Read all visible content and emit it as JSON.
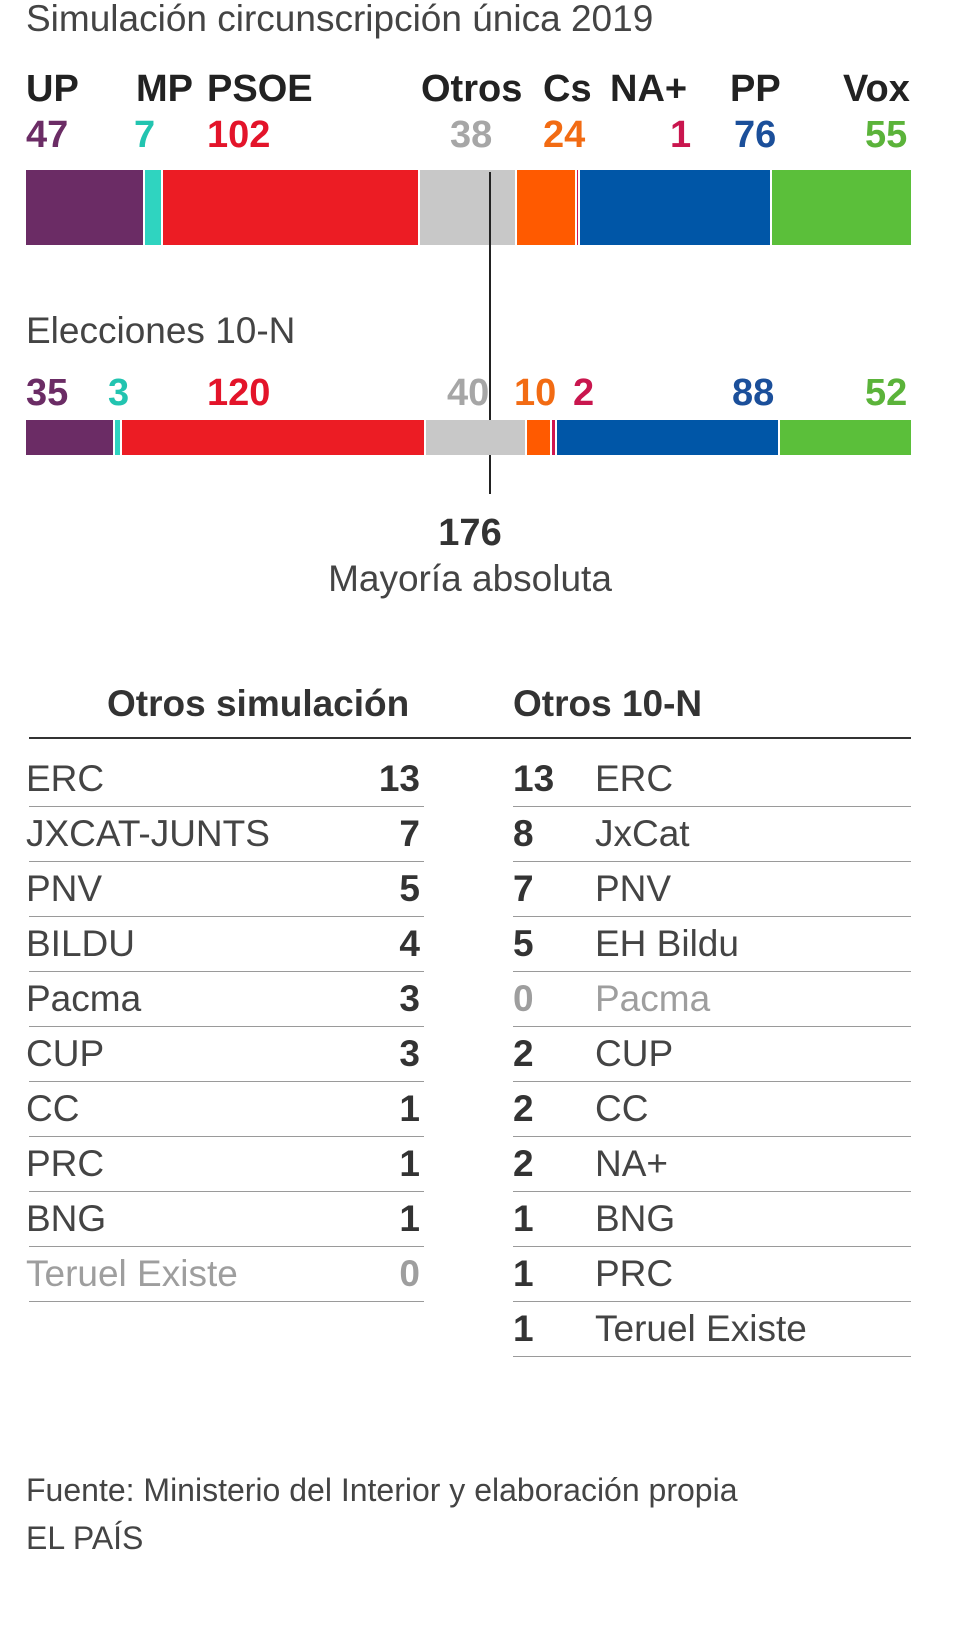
{
  "title": "Simulación circunscripción única 2019",
  "subtitle_10n": "Elecciones 10-N",
  "majority": {
    "number": "176",
    "label": "Mayoría absoluta"
  },
  "chart_data": {
    "type": "bar",
    "stacked": true,
    "orientation": "horizontal",
    "categories": [
      "Simulación circunscripción única 2019",
      "Elecciones 10-N"
    ],
    "total_seats": 350,
    "majority": 176,
    "series": [
      {
        "name": "UP",
        "color": "#6b2c65",
        "values": [
          47,
          35
        ]
      },
      {
        "name": "MP",
        "color": "#2fd4c0",
        "values": [
          7,
          3
        ]
      },
      {
        "name": "PSOE",
        "color": "#ec1c24",
        "values": [
          102,
          120
        ]
      },
      {
        "name": "Otros",
        "color": "#c8c8c8",
        "values": [
          38,
          40
        ]
      },
      {
        "name": "Cs",
        "color": "#ff5a00",
        "values": [
          24,
          10
        ]
      },
      {
        "name": "NA+",
        "color": "#d1164f",
        "values": [
          1,
          2
        ]
      },
      {
        "name": "PP",
        "color": "#0056a7",
        "values": [
          76,
          88
        ]
      },
      {
        "name": "Vox",
        "color": "#5bbf3a",
        "values": [
          55,
          52
        ]
      }
    ]
  },
  "label_colors": {
    "UP": "#6b2c65",
    "MP": "#22c4b0",
    "PSOE": "#e3142a",
    "Otros": "#a6a6a6",
    "Cs": "#f26b13",
    "NA+": "#c9164e",
    "PP": "#1b4f9a",
    "Vox": "#5bb33a"
  },
  "tables": {
    "simulacion": {
      "header": "Otros simulación",
      "rows": [
        {
          "name": "ERC",
          "value": "13"
        },
        {
          "name": "JXCAT-JUNTS",
          "value": "7"
        },
        {
          "name": "PNV",
          "value": "5"
        },
        {
          "name": "BILDU",
          "value": "4"
        },
        {
          "name": "Pacma",
          "value": "3"
        },
        {
          "name": "CUP",
          "value": "3"
        },
        {
          "name": "CC",
          "value": "1"
        },
        {
          "name": "PRC",
          "value": "1"
        },
        {
          "name": "BNG",
          "value": "1"
        },
        {
          "name": "Teruel Existe",
          "value": "0"
        }
      ]
    },
    "diezn": {
      "header": "Otros 10-N",
      "rows": [
        {
          "name": "ERC",
          "value": "13"
        },
        {
          "name": "JxCat",
          "value": "8"
        },
        {
          "name": "PNV",
          "value": "7"
        },
        {
          "name": "EH Bildu",
          "value": "5"
        },
        {
          "name": "Pacma",
          "value": "0"
        },
        {
          "name": "CUP",
          "value": "2"
        },
        {
          "name": "CC",
          "value": "2"
        },
        {
          "name": "NA+",
          "value": "2"
        },
        {
          "name": "BNG",
          "value": "1"
        },
        {
          "name": "PRC",
          "value": "1"
        },
        {
          "name": "Teruel Existe",
          "value": "1"
        }
      ]
    }
  },
  "footer": {
    "source": "Fuente: Ministerio del Interior y elaboración propia",
    "brand": "EL PAÍS"
  }
}
